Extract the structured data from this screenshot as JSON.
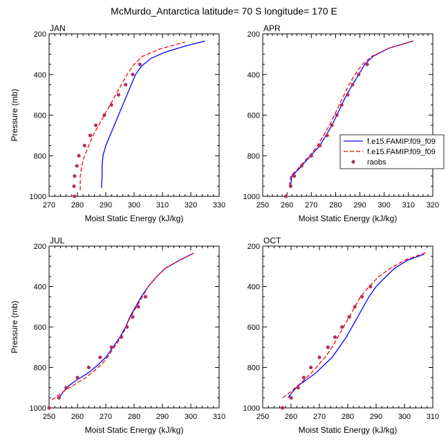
{
  "title": "McMurdo_Antarctica  latitude= 70 S longitude= 170 E",
  "colors": {
    "model1": "#0000ff",
    "model2": "#ff0000",
    "obs": "#b03060"
  },
  "legend": {
    "placement": "right of APR panel",
    "entries": [
      {
        "label": "f.e15.FAMIP.f09_f09",
        "style": "solid",
        "color": "#0000ff"
      },
      {
        "label": "f.e15.FAMIP.f09_f09",
        "style": "dashed",
        "color": "#ff0000"
      },
      {
        "label": "raobs",
        "style": "dots",
        "color": "#b03060"
      }
    ]
  },
  "chart_data": [
    {
      "type": "line",
      "panel": "JAN",
      "xlabel": "Moist Static Energy (kJ/kg)",
      "ylabel": "Pressure (mb)",
      "xlim": [
        270,
        330
      ],
      "ylim": [
        1000,
        200
      ],
      "xticks": [
        270,
        280,
        290,
        300,
        310,
        320,
        330
      ],
      "yticks": [
        200,
        400,
        600,
        800,
        1000
      ],
      "series": [
        {
          "style": "solid",
          "color": "#0000ff",
          "points": [
            [
              288.5,
              960
            ],
            [
              288.5,
              950
            ],
            [
              288.7,
              900
            ],
            [
              288.7,
              850
            ],
            [
              289,
              800
            ],
            [
              290,
              750
            ],
            [
              291.5,
              700
            ],
            [
              293,
              650
            ],
            [
              294.5,
              600
            ],
            [
              296,
              550
            ],
            [
              297.5,
              500
            ],
            [
              299,
              450
            ],
            [
              300.5,
              400
            ],
            [
              302.5,
              360
            ],
            [
              306,
              320
            ],
            [
              311,
              290
            ],
            [
              318,
              260
            ],
            [
              325,
              235
            ]
          ]
        },
        {
          "style": "dashed",
          "color": "#ff0000",
          "points": [
            [
              281,
              970
            ],
            [
              281,
              950
            ],
            [
              281,
              900
            ],
            [
              281.5,
              850
            ],
            [
              282.5,
              800
            ],
            [
              284,
              750
            ],
            [
              285.5,
              700
            ],
            [
              287.5,
              650
            ],
            [
              289.5,
              600
            ],
            [
              291.5,
              550
            ],
            [
              293.5,
              500
            ],
            [
              295.5,
              450
            ],
            [
              297.5,
              400
            ],
            [
              300,
              350
            ],
            [
              303,
              310
            ],
            [
              309,
              275
            ],
            [
              318,
              240
            ]
          ]
        },
        {
          "style": "dots",
          "color": "#b03060",
          "points": [
            [
              279,
              1000
            ],
            [
              278.8,
              950
            ],
            [
              279,
              900
            ],
            [
              279.8,
              850
            ],
            [
              280.5,
              800
            ],
            [
              282.5,
              750
            ],
            [
              284.5,
              700
            ],
            [
              286.5,
              650
            ],
            [
              289.5,
              600
            ],
            [
              292,
              550
            ],
            [
              294.5,
              500
            ],
            [
              297,
              450
            ],
            [
              299.5,
              400
            ],
            [
              302,
              350
            ]
          ]
        }
      ]
    },
    {
      "type": "line",
      "panel": "APR",
      "xlabel": "Moist Static Energy (kJ/kg)",
      "ylabel": "",
      "xlim": [
        250,
        320
      ],
      "ylim": [
        1000,
        200
      ],
      "xticks": [
        250,
        260,
        270,
        280,
        290,
        300,
        310,
        320
      ],
      "yticks": [
        200,
        400,
        600,
        800,
        1000
      ],
      "series": [
        {
          "style": "solid",
          "color": "#0000ff",
          "points": [
            [
              261.5,
              950
            ],
            [
              262,
              900
            ],
            [
              264.5,
              870
            ],
            [
              267.5,
              830
            ],
            [
              270.5,
              790
            ],
            [
              273.5,
              750
            ],
            [
              276,
              700
            ],
            [
              278.5,
              650
            ],
            [
              280.5,
              600
            ],
            [
              282.5,
              550
            ],
            [
              284.5,
              500
            ],
            [
              287,
              450
            ],
            [
              289.5,
              400
            ],
            [
              292,
              350
            ],
            [
              295.5,
              310
            ],
            [
              302,
              270
            ],
            [
              312,
              235
            ]
          ]
        },
        {
          "style": "dashed",
          "color": "#ff0000",
          "points": [
            [
              261,
              950
            ],
            [
              261.5,
              900
            ],
            [
              264,
              870
            ],
            [
              267,
              830
            ],
            [
              270,
              790
            ],
            [
              272.5,
              750
            ],
            [
              275,
              700
            ],
            [
              277.5,
              650
            ],
            [
              279.5,
              600
            ],
            [
              281.5,
              550
            ],
            [
              283.5,
              500
            ],
            [
              285.5,
              450
            ],
            [
              288,
              400
            ],
            [
              291,
              350
            ],
            [
              295,
              310
            ],
            [
              302,
              270
            ],
            [
              312,
              235
            ]
          ]
        },
        {
          "style": "dots",
          "color": "#b03060",
          "points": [
            [
              259.5,
              1000
            ],
            [
              261.5,
              950
            ],
            [
              263,
              900
            ],
            [
              266,
              850
            ],
            [
              270,
              800
            ],
            [
              273.5,
              750
            ],
            [
              276.5,
              700
            ],
            [
              278.5,
              650
            ],
            [
              280.5,
              600
            ],
            [
              282.5,
              550
            ],
            [
              285,
              500
            ],
            [
              287,
              450
            ],
            [
              289.5,
              400
            ],
            [
              293,
              350
            ]
          ]
        }
      ]
    },
    {
      "type": "line",
      "panel": "JUL",
      "xlabel": "Moist Static Energy (kJ/kg)",
      "ylabel": "Pressure (mb)",
      "xlim": [
        250,
        310
      ],
      "ylim": [
        1000,
        200
      ],
      "xticks": [
        250,
        260,
        270,
        280,
        290,
        300,
        310
      ],
      "yticks": [
        200,
        400,
        600,
        800,
        1000
      ],
      "series": [
        {
          "style": "solid",
          "color": "#0000ff",
          "points": [
            [
              253.5,
              950
            ],
            [
              255,
              920
            ],
            [
              257,
              890
            ],
            [
              260,
              860
            ],
            [
              263.5,
              830
            ],
            [
              267,
              790
            ],
            [
              270,
              750
            ],
            [
              272.5,
              700
            ],
            [
              275,
              650
            ],
            [
              277,
              600
            ],
            [
              278.5,
              550
            ],
            [
              280.5,
              500
            ],
            [
              282.5,
              450
            ],
            [
              285,
              400
            ],
            [
              288,
              350
            ],
            [
              291,
              310
            ],
            [
              296,
              270
            ],
            [
              301,
              235
            ]
          ]
        },
        {
          "style": "dashed",
          "color": "#ff0000",
          "points": [
            [
              251,
              960
            ],
            [
              253,
              940
            ],
            [
              256,
              910
            ],
            [
              259.5,
              880
            ],
            [
              263,
              850
            ],
            [
              266.5,
              810
            ],
            [
              269.5,
              770
            ],
            [
              272,
              720
            ],
            [
              274.5,
              670
            ],
            [
              276.5,
              620
            ],
            [
              278,
              570
            ],
            [
              280,
              520
            ],
            [
              282.5,
              460
            ],
            [
              285,
              400
            ],
            [
              288,
              350
            ],
            [
              291,
              310
            ],
            [
              296,
              270
            ],
            [
              301,
              235
            ]
          ]
        },
        {
          "style": "dots",
          "color": "#b03060",
          "points": [
            [
              250,
              1000
            ],
            [
              253.5,
              950
            ],
            [
              256,
              900
            ],
            [
              260,
              850
            ],
            [
              264,
              800
            ],
            [
              268,
              750
            ],
            [
              272,
              700
            ],
            [
              275.5,
              650
            ],
            [
              277.5,
              600
            ],
            [
              279.5,
              550
            ],
            [
              281.5,
              500
            ],
            [
              284,
              450
            ]
          ]
        }
      ]
    },
    {
      "type": "line",
      "panel": "OCT",
      "xlabel": "Moist Static Energy (kJ/kg)",
      "ylabel": "",
      "xlim": [
        250,
        310
      ],
      "ylim": [
        1000,
        200
      ],
      "xticks": [
        250,
        260,
        270,
        280,
        290,
        300,
        310
      ],
      "yticks": [
        200,
        400,
        600,
        800,
        1000
      ],
      "series": [
        {
          "style": "solid",
          "color": "#0000ff",
          "points": [
            [
              259,
              950
            ],
            [
              260.5,
              920
            ],
            [
              262.5,
              890
            ],
            [
              265.5,
              860
            ],
            [
              268.5,
              830
            ],
            [
              271.5,
              790
            ],
            [
              274.5,
              750
            ],
            [
              277,
              700
            ],
            [
              279.5,
              650
            ],
            [
              281.5,
              600
            ],
            [
              283.5,
              550
            ],
            [
              285.5,
              500
            ],
            [
              287.5,
              450
            ],
            [
              290,
              400
            ],
            [
              293.5,
              350
            ],
            [
              296.5,
              310
            ],
            [
              301,
              270
            ],
            [
              307,
              240
            ]
          ]
        },
        {
          "style": "dashed",
          "color": "#ff0000",
          "points": [
            [
              257,
              950
            ],
            [
              259,
              930
            ],
            [
              261.5,
              900
            ],
            [
              264,
              870
            ],
            [
              267,
              830
            ],
            [
              269.5,
              790
            ],
            [
              272,
              750
            ],
            [
              274.5,
              700
            ],
            [
              276.5,
              650
            ],
            [
              278.5,
              600
            ],
            [
              280.5,
              550
            ],
            [
              282.5,
              500
            ],
            [
              284.5,
              450
            ],
            [
              287.5,
              400
            ],
            [
              291,
              350
            ],
            [
              295,
              310
            ],
            [
              300,
              270
            ],
            [
              308,
              230
            ]
          ]
        },
        {
          "style": "dots",
          "color": "#b03060",
          "points": [
            [
              257,
              1000
            ],
            [
              260,
              950
            ],
            [
              262.5,
              900
            ],
            [
              264.5,
              850
            ],
            [
              267,
              800
            ],
            [
              270,
              750
            ],
            [
              273,
              700
            ],
            [
              275.5,
              650
            ],
            [
              278,
              600
            ],
            [
              280.5,
              550
            ],
            [
              282.5,
              500
            ],
            [
              285,
              450
            ],
            [
              288,
              400
            ]
          ]
        }
      ]
    }
  ]
}
